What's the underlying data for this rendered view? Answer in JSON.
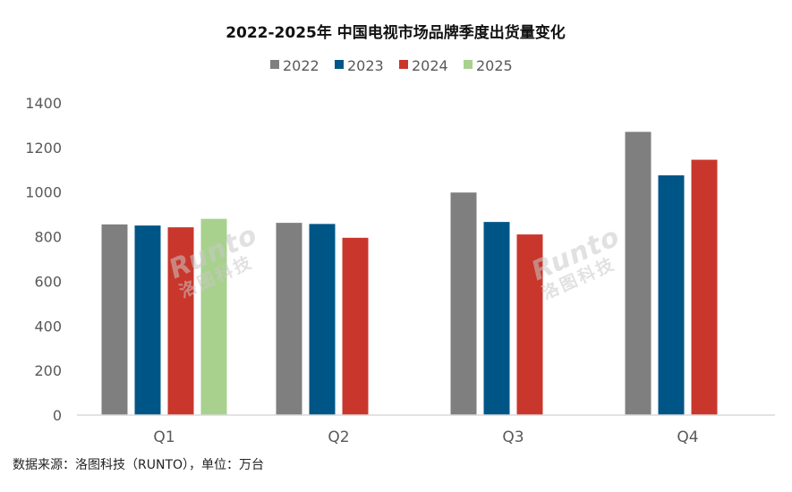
{
  "chart_data": {
    "type": "bar",
    "title": "2022-2025年 中国电视市场品牌季度出货量变化",
    "categories": [
      "Q1",
      "Q2",
      "Q3",
      "Q4"
    ],
    "series": [
      {
        "name": "2022",
        "color": "#7f7f7f",
        "values": [
          855,
          862,
          998,
          1270
        ]
      },
      {
        "name": "2023",
        "color": "#005587",
        "values": [
          850,
          857,
          866,
          1075
        ]
      },
      {
        "name": "2024",
        "color": "#c9372c",
        "values": [
          842,
          795,
          810,
          1145
        ]
      },
      {
        "name": "2025",
        "color": "#a9d18e",
        "values": [
          880,
          null,
          null,
          null
        ]
      }
    ],
    "ylim": [
      0,
      1400
    ],
    "yticks": [
      0,
      200,
      400,
      600,
      800,
      1000,
      1200,
      1400
    ],
    "xlabel": "",
    "ylabel": "",
    "legend_position": "top-center",
    "grid": false
  },
  "watermark": {
    "text_en": "Runto",
    "text_cn": "洛图科技"
  },
  "source_note": "数据来源：洛图科技（RUNTO），单位：万台"
}
